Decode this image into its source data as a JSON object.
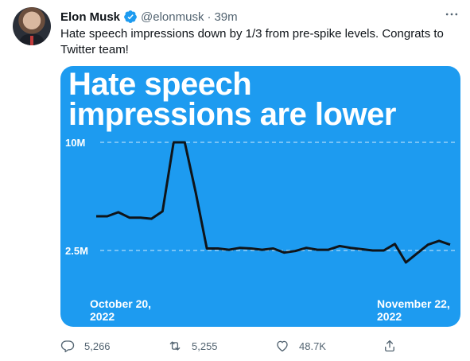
{
  "author": {
    "name": "Elon Musk",
    "handle": "@elonmusk",
    "separator": "·",
    "time": "39m",
    "verified_icon": "verified-badge-icon"
  },
  "more_icon": "more-horizontal-icon",
  "tweet_text": "Hate speech impressions down by 1/3 from pre-spike levels. Congrats to Twitter team!",
  "chart_data": {
    "type": "line",
    "title_line1": "Hate speech",
    "title_line2": "impressions are lower",
    "y_ticks": [
      {
        "label": "10M",
        "value": 10000000
      },
      {
        "label": "2.5M",
        "value": 2500000
      }
    ],
    "x_labels": [
      {
        "line1": "October 20,",
        "line2": "2022"
      },
      {
        "line1": "November 22,",
        "line2": "2022"
      }
    ],
    "x_start": "2022-10-20",
    "x_end": "2022-11-22",
    "ylim": [
      0,
      12000000
    ],
    "grid": "dashed at ticks",
    "series": [
      {
        "values": [
          4870000,
          4870000,
          5150000,
          4780000,
          4780000,
          4700000,
          5220000,
          10000000,
          10000000,
          6500000,
          2640000,
          2640000,
          2550000,
          2680000,
          2640000,
          2550000,
          2640000,
          2350000,
          2460000,
          2680000,
          2550000,
          2550000,
          2810000,
          2680000,
          2590000,
          2500000,
          2500000,
          2950000,
          1670000,
          2290000,
          2900000,
          3170000,
          2900000
        ]
      }
    ],
    "colors": {
      "background": "#1d9bf0",
      "line": "#0f1419",
      "text": "#ffffff"
    }
  },
  "actions": {
    "reply": {
      "icon": "reply-icon",
      "count": "5,266"
    },
    "retweet": {
      "icon": "retweet-icon",
      "count": "5,255"
    },
    "like": {
      "icon": "like-icon",
      "count": "48.7K"
    },
    "share": {
      "icon": "share-icon"
    }
  }
}
